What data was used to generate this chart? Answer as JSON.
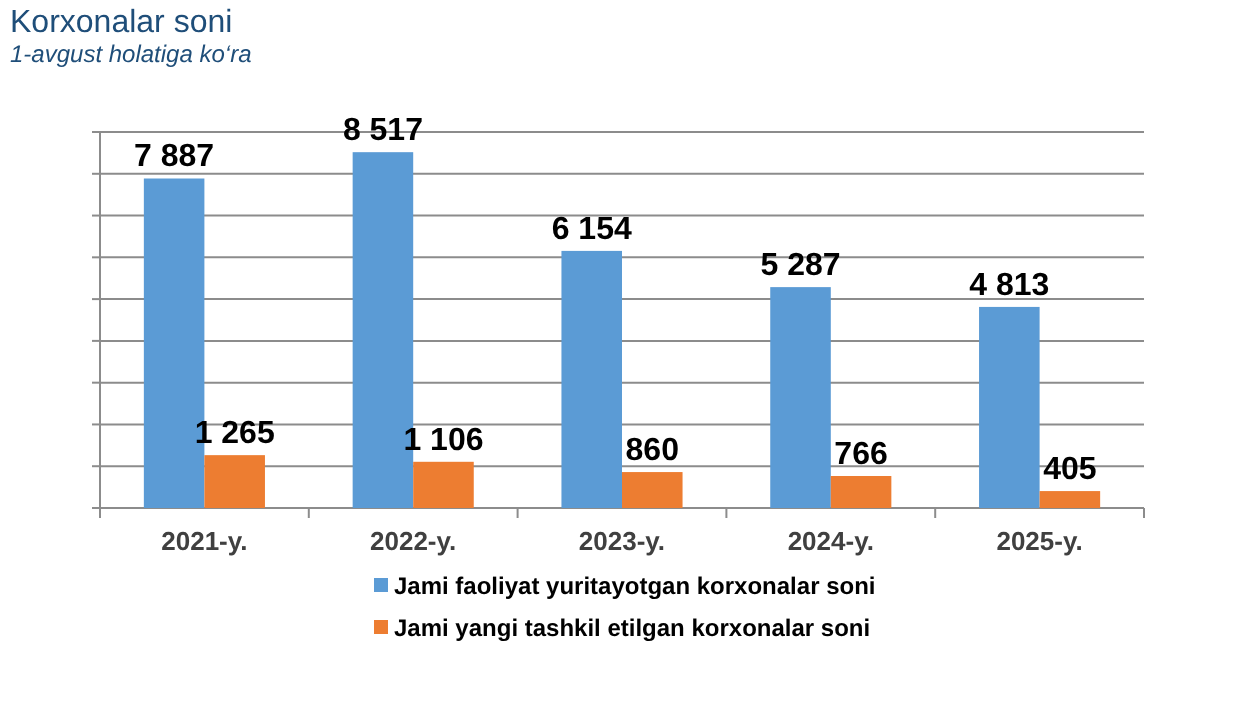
{
  "chart_data": {
    "type": "bar",
    "title": "Korxonalar soni",
    "subtitle": "1-avgust holatiga ko‘ra",
    "categories": [
      "2021-y.",
      "2022-y.",
      "2023-y.",
      "2024-y.",
      "2025-y."
    ],
    "series": [
      {
        "name": "Jami faoliyat yuritayotgan korxonalar soni",
        "color": "#5b9bd5",
        "values": [
          7887,
          8517,
          6154,
          5287,
          4813
        ],
        "value_labels": [
          "7 887",
          "8 517",
          "6 154",
          "5 287",
          "4 813"
        ]
      },
      {
        "name": "Jami yangi tashkil etilgan korxonalar soni",
        "color": "#ed7d31",
        "values": [
          1265,
          1106,
          860,
          766,
          405
        ],
        "value_labels": [
          "1 265",
          "1 106",
          "860",
          "766",
          "405"
        ]
      }
    ],
    "ylim": [
      0,
      9000
    ],
    "yticks": [
      {
        "value": 0,
        "label": null
      },
      {
        "value": 1000,
        "label": null
      },
      {
        "value": 2000,
        "label": null
      },
      {
        "value": 3000,
        "label": null
      },
      {
        "value": 4000,
        "label": null
      },
      {
        "value": 5000,
        "label": null
      },
      {
        "value": 6000,
        "label": null
      },
      {
        "value": 7000,
        "label": null
      },
      {
        "value": 8000,
        "label": null
      },
      {
        "value": 9000,
        "label": null
      }
    ],
    "tick_labels": "x",
    "grid": "y",
    "legend": "bottom"
  }
}
